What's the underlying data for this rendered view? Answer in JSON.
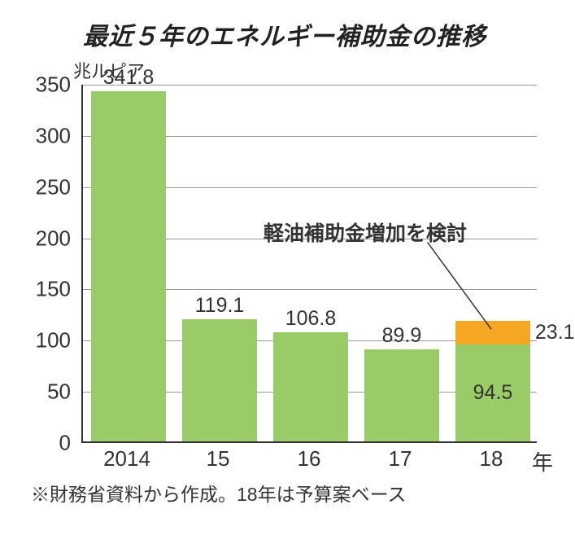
{
  "chart": {
    "type": "bar",
    "title": "最近５年のエネルギー補助金の推移",
    "unit_label": "兆ルピア",
    "footnote": "※財務省資料から作成。18年は予算案ベース",
    "ylim": [
      0,
      350
    ],
    "ytick_step": 50,
    "yticks": [
      "0",
      "50",
      "100",
      "150",
      "200",
      "250",
      "300",
      "350"
    ],
    "categories": [
      "2014",
      "15",
      "16",
      "17",
      "18"
    ],
    "x_suffix": "年",
    "bars": [
      {
        "segments": [
          {
            "value": 341.8,
            "color": "#99cc66"
          }
        ],
        "label": "341.8"
      },
      {
        "segments": [
          {
            "value": 119.1,
            "color": "#99cc66"
          }
        ],
        "label": "119.1"
      },
      {
        "segments": [
          {
            "value": 106.8,
            "color": "#99cc66"
          }
        ],
        "label": "106.8"
      },
      {
        "segments": [
          {
            "value": 89.9,
            "color": "#99cc66"
          }
        ],
        "label": "89.9"
      },
      {
        "segments": [
          {
            "value": 94.5,
            "color": "#99cc66",
            "seg_label": "94.5"
          },
          {
            "value": 23.1,
            "color": "#f5a623",
            "seg_label": "23.1",
            "seg_label_pos": "right"
          }
        ]
      }
    ],
    "annotation": {
      "text": "軽油補助金増加を検討"
    },
    "colors": {
      "background": "#ffffff",
      "axis": "#333333",
      "grid": "#999999",
      "text": "#333333"
    },
    "bar_width_ratio": 0.82,
    "label_fontsize": 25,
    "tick_fontsize": 26,
    "title_fontsize": 30
  }
}
